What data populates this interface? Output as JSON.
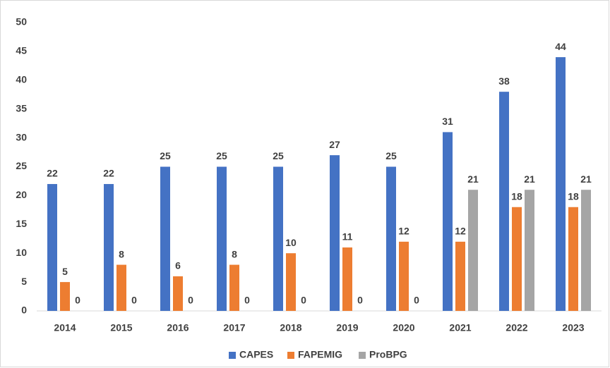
{
  "chart_data": {
    "type": "bar",
    "categories": [
      "2014",
      "2015",
      "2016",
      "2017",
      "2018",
      "2019",
      "2020",
      "2021",
      "2022",
      "2023"
    ],
    "series": [
      {
        "name": "CAPES",
        "color": "#4472c4",
        "values": [
          22,
          22,
          25,
          25,
          25,
          27,
          25,
          31,
          38,
          44
        ]
      },
      {
        "name": "FAPEMIG",
        "color": "#ed7d31",
        "values": [
          5,
          8,
          6,
          8,
          10,
          11,
          12,
          12,
          18,
          18
        ]
      },
      {
        "name": "ProBPG",
        "color": "#a5a5a5",
        "values": [
          0,
          0,
          0,
          0,
          0,
          0,
          0,
          21,
          21,
          21
        ]
      }
    ],
    "ylim": [
      0,
      50
    ],
    "yticks": [
      0,
      5,
      10,
      15,
      20,
      25,
      30,
      35,
      40,
      45,
      50
    ],
    "grid": false,
    "legend": "bottom"
  }
}
